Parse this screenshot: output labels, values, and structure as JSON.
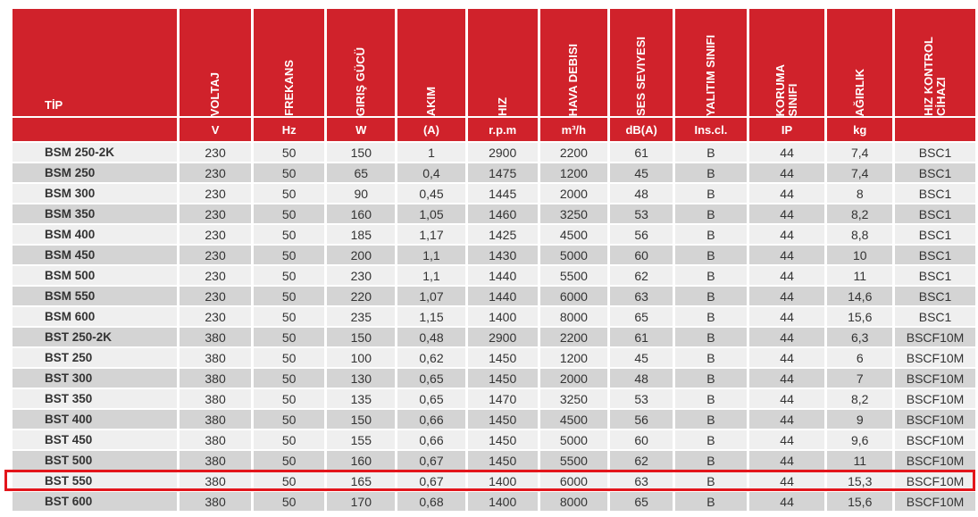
{
  "headers": [
    {
      "key": "tip",
      "label": "TİP",
      "unit": ""
    },
    {
      "key": "voltaj",
      "label": "VOLTAJ",
      "unit": "V"
    },
    {
      "key": "frekans",
      "label": "FREKANS",
      "unit": "Hz"
    },
    {
      "key": "giris_gucu",
      "label": "GIRIŞ GÜCÜ",
      "unit": "W"
    },
    {
      "key": "akim",
      "label": "AKIM",
      "unit": "(A)"
    },
    {
      "key": "hiz",
      "label": "HIZ",
      "unit": "r.p.m"
    },
    {
      "key": "hava_debisi",
      "label": "HAVA DEBISI",
      "unit": "m³/h"
    },
    {
      "key": "ses_seviyesi",
      "label": "SES SEVIYESI",
      "unit": "dB(A)"
    },
    {
      "key": "yalitim_sinifi",
      "label": "YALITIM SINIFI",
      "unit": "Ins.cl."
    },
    {
      "key": "koruma_sinifi",
      "label": "KORUMA\nSINIFI",
      "unit": "IP"
    },
    {
      "key": "agirlik",
      "label": "AĞIRLIK",
      "unit": "kg"
    },
    {
      "key": "hiz_kontrol",
      "label": "HIZ KONTROL\nCİHAZI",
      "unit": ""
    }
  ],
  "rows": [
    [
      "BSM 250-2K",
      "230",
      "50",
      "150",
      "1",
      "2900",
      "2200",
      "61",
      "B",
      "44",
      "7,4",
      "BSC1"
    ],
    [
      "BSM 250",
      "230",
      "50",
      "65",
      "0,4",
      "1475",
      "1200",
      "45",
      "B",
      "44",
      "7,4",
      "BSC1"
    ],
    [
      "BSM 300",
      "230",
      "50",
      "90",
      "0,45",
      "1445",
      "2000",
      "48",
      "B",
      "44",
      "8",
      "BSC1"
    ],
    [
      "BSM 350",
      "230",
      "50",
      "160",
      "1,05",
      "1460",
      "3250",
      "53",
      "B",
      "44",
      "8,2",
      "BSC1"
    ],
    [
      "BSM 400",
      "230",
      "50",
      "185",
      "1,17",
      "1425",
      "4500",
      "56",
      "B",
      "44",
      "8,8",
      "BSC1"
    ],
    [
      "BSM 450",
      "230",
      "50",
      "200",
      "1,1",
      "1430",
      "5000",
      "60",
      "B",
      "44",
      "10",
      "BSC1"
    ],
    [
      "BSM 500",
      "230",
      "50",
      "230",
      "1,1",
      "1440",
      "5500",
      "62",
      "B",
      "44",
      "11",
      "BSC1"
    ],
    [
      "BSM 550",
      "230",
      "50",
      "220",
      "1,07",
      "1440",
      "6000",
      "63",
      "B",
      "44",
      "14,6",
      "BSC1"
    ],
    [
      "BSM 600",
      "230",
      "50",
      "235",
      "1,15",
      "1400",
      "8000",
      "65",
      "B",
      "44",
      "15,6",
      "BSC1"
    ],
    [
      "BST 250-2K",
      "380",
      "50",
      "150",
      "0,48",
      "2900",
      "2200",
      "61",
      "B",
      "44",
      "6,3",
      "BSCF10M"
    ],
    [
      "BST 250",
      "380",
      "50",
      "100",
      "0,62",
      "1450",
      "1200",
      "45",
      "B",
      "44",
      "6",
      "BSCF10M"
    ],
    [
      "BST 300",
      "380",
      "50",
      "130",
      "0,65",
      "1450",
      "2000",
      "48",
      "B",
      "44",
      "7",
      "BSCF10M"
    ],
    [
      "BST 350",
      "380",
      "50",
      "135",
      "0,65",
      "1470",
      "3250",
      "53",
      "B",
      "44",
      "8,2",
      "BSCF10M"
    ],
    [
      "BST 400",
      "380",
      "50",
      "150",
      "0,66",
      "1450",
      "4500",
      "56",
      "B",
      "44",
      "9",
      "BSCF10M"
    ],
    [
      "BST 450",
      "380",
      "50",
      "155",
      "0,66",
      "1450",
      "5000",
      "60",
      "B",
      "44",
      "9,6",
      "BSCF10M"
    ],
    [
      "BST 500",
      "380",
      "50",
      "160",
      "0,67",
      "1450",
      "5500",
      "62",
      "B",
      "44",
      "11",
      "BSCF10M"
    ],
    [
      "BST 550",
      "380",
      "50",
      "165",
      "0,67",
      "1400",
      "6000",
      "63",
      "B",
      "44",
      "15,3",
      "BSCF10M"
    ],
    [
      "BST 600",
      "380",
      "50",
      "170",
      "0,68",
      "1400",
      "8000",
      "65",
      "B",
      "44",
      "15,6",
      "BSCF10M"
    ]
  ],
  "highlighted_row": "BST 550",
  "colors": {
    "header_red": "#d0222b",
    "row_light": "#efefef",
    "row_dark": "#d4d4d4",
    "highlight_border": "#e3151b"
  }
}
